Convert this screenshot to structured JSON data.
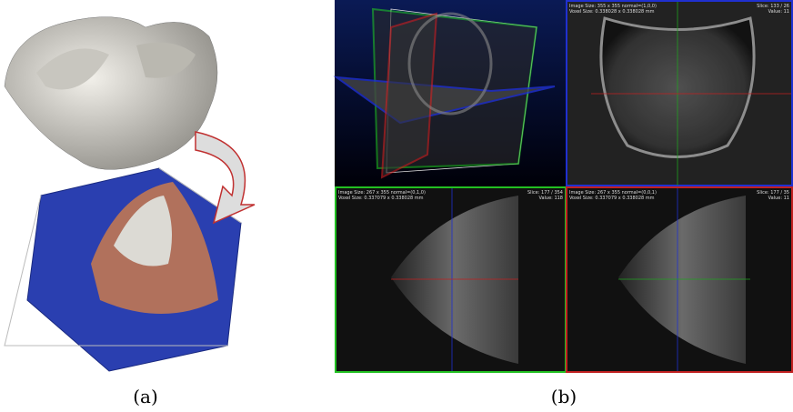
{
  "figure": {
    "captions": [
      "(a)",
      "(b)"
    ],
    "panels": [
      {
        "lines": [
          "Image Size: 355 x 355 normal=(1,0,0)",
          "Voxel Size: 0.338028 x 0.338028 mm"
        ],
        "right": [
          "Slice: 133 / 26",
          "Value: 11"
        ]
      },
      {
        "lines": [
          "Image Size: 267 x 355 normal=(0,1,0)",
          "Voxel Size: 0.337079 x 0.338028 mm"
        ],
        "right": [
          "Slice: 177 / 354",
          "Value: 118"
        ]
      },
      {
        "lines": [
          "Image Size: 267 x 355 normal=(0,0,1)",
          "Voxel Size: 0.337079 x 0.338028 mm"
        ],
        "right": [
          "Slice: 177 / 35",
          "Value: 11"
        ]
      }
    ]
  }
}
